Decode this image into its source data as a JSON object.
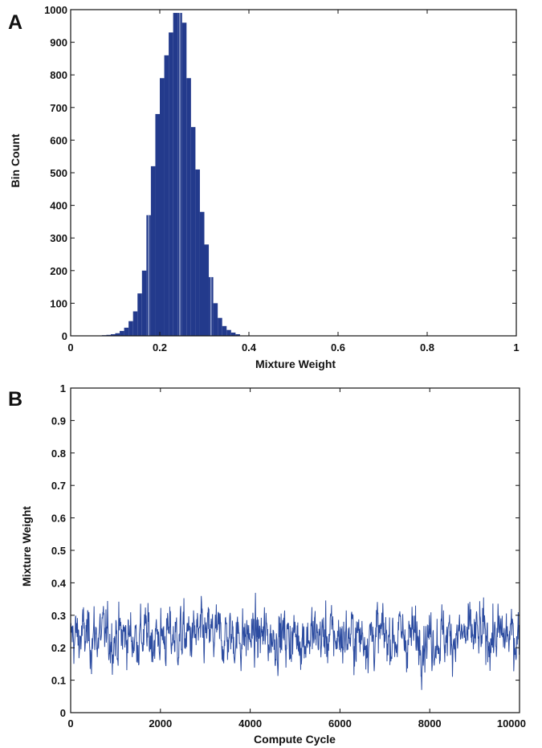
{
  "colors": {
    "bar": "#233a8c",
    "line": "#2b4ba0",
    "axis": "#111111",
    "separator": "#c9d3ea"
  },
  "chart_data": [
    {
      "panel_label": "A",
      "type": "bar",
      "title": "",
      "xlabel": "Mixture Weight",
      "ylabel": "Bin Count",
      "xlim": [
        0,
        1
      ],
      "ylim": [
        0,
        1000
      ],
      "xticks": [
        "0",
        "0.2",
        "0.4",
        "0.6",
        "0.8",
        "1"
      ],
      "yticks": [
        "0",
        "100",
        "200",
        "300",
        "400",
        "500",
        "600",
        "700",
        "800",
        "900",
        "1000"
      ],
      "bin_width": 0.01,
      "categories": [
        0.07,
        0.08,
        0.09,
        0.1,
        0.11,
        0.12,
        0.13,
        0.14,
        0.15,
        0.16,
        0.17,
        0.18,
        0.19,
        0.2,
        0.21,
        0.22,
        0.23,
        0.24,
        0.25,
        0.26,
        0.27,
        0.28,
        0.29,
        0.3,
        0.31,
        0.32,
        0.33,
        0.34,
        0.35,
        0.36,
        0.37
      ],
      "values": [
        2,
        3,
        5,
        8,
        15,
        25,
        45,
        75,
        130,
        200,
        370,
        520,
        680,
        790,
        860,
        930,
        990,
        990,
        960,
        790,
        640,
        510,
        380,
        280,
        180,
        100,
        55,
        30,
        18,
        10,
        5
      ],
      "grid": false,
      "legend": "none"
    },
    {
      "panel_label": "B",
      "type": "line",
      "title": "",
      "xlabel": "Compute Cycle",
      "ylabel": "Mixture Weight",
      "xlim": [
        0,
        10000
      ],
      "ylim": [
        0,
        1
      ],
      "xticks": [
        "0",
        "2000",
        "4000",
        "6000",
        "8000",
        "10000"
      ],
      "yticks": [
        "0",
        "0.1",
        "0.2",
        "0.3",
        "0.4",
        "0.5",
        "0.6",
        "0.7",
        "0.8",
        "0.9",
        "1"
      ],
      "series": [
        {
          "mean": 0.235,
          "range": [
            0.07,
            0.4
          ],
          "samples": 10000
        }
      ],
      "grid": false,
      "legend": "none"
    }
  ]
}
